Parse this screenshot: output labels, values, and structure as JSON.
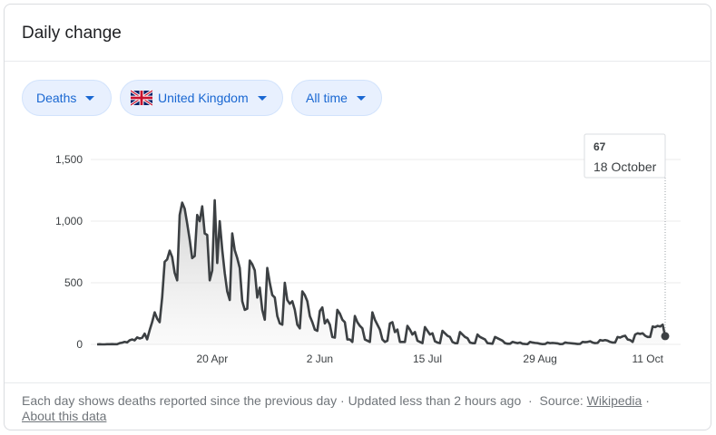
{
  "header": {
    "title": "Daily change"
  },
  "controls": {
    "metric": "Deaths",
    "region": "United Kingdom",
    "range": "All time"
  },
  "chart_data": {
    "type": "line",
    "categories": [
      null,
      null,
      null,
      null,
      null,
      null,
      null,
      null,
      null,
      null,
      null,
      null,
      null,
      null,
      null,
      null,
      null,
      null,
      null,
      null,
      null,
      null,
      null,
      null,
      null,
      null,
      null,
      null,
      null,
      null,
      null,
      null,
      null,
      null,
      null,
      null,
      null,
      null,
      null,
      null,
      null,
      null,
      null,
      null,
      null,
      null,
      "20 Apr",
      null,
      null,
      null,
      null,
      null,
      null,
      null,
      null,
      null,
      null,
      null,
      null,
      null,
      null,
      null,
      null,
      null,
      null,
      null,
      null,
      null,
      null,
      null,
      null,
      null,
      null,
      null,
      null,
      null,
      null,
      null,
      null,
      null,
      null,
      null,
      null,
      null,
      null,
      null,
      null,
      null,
      null,
      "2 Jun",
      null,
      null,
      null,
      null,
      null,
      null,
      null,
      null,
      null,
      null,
      null,
      null,
      null,
      null,
      null,
      null,
      null,
      null,
      null,
      null,
      null,
      null,
      null,
      null,
      null,
      null,
      null,
      null,
      null,
      null,
      null,
      null,
      null,
      null,
      null,
      null,
      null,
      null,
      null,
      null,
      null,
      null,
      "15 Jul",
      null,
      null,
      null,
      null,
      null,
      null,
      null,
      null,
      null,
      null,
      null,
      null,
      null,
      null,
      null,
      null,
      null,
      null,
      null,
      null,
      null,
      null,
      null,
      null,
      null,
      null,
      null,
      null,
      null,
      null,
      null,
      null,
      null,
      null,
      null,
      null,
      null,
      null,
      null,
      null,
      null,
      null,
      null,
      null,
      "29 Aug",
      null,
      null,
      null,
      null,
      null,
      null,
      null,
      null,
      null,
      null,
      null,
      null,
      null,
      null,
      null,
      null,
      null,
      null,
      null,
      null,
      null,
      null,
      null,
      null,
      null,
      null,
      null,
      null,
      null,
      null,
      null,
      null,
      null,
      null,
      null,
      null,
      null,
      null,
      null,
      null,
      null,
      null,
      "11 Oct",
      null,
      null,
      null,
      null,
      null,
      null,
      null
    ],
    "values": [
      0,
      1,
      0,
      0,
      1,
      1,
      2,
      1,
      1,
      10,
      14,
      20,
      16,
      33,
      40,
      33,
      56,
      48,
      54,
      87,
      41,
      115,
      181,
      260,
      209,
      180,
      381,
      670,
      690,
      760,
      708,
      580,
      520,
      1050,
      1150,
      1100,
      980,
      850,
      700,
      717,
      1050,
      1000,
      1120,
      900,
      888,
      520,
      600,
      1170,
      660,
      1000,
      768,
      580,
      430,
      360,
      900,
      765,
      700,
      620,
      350,
      280,
      290,
      680,
      650,
      600,
      380,
      460,
      280,
      200,
      620,
      500,
      400,
      380,
      230,
      170,
      160,
      500,
      360,
      330,
      350,
      280,
      160,
      130,
      430,
      400,
      350,
      230,
      180,
      120,
      110,
      270,
      300,
      170,
      200,
      160,
      60,
      55,
      280,
      250,
      200,
      180,
      40,
      40,
      20,
      230,
      180,
      150,
      130,
      40,
      30,
      20,
      260,
      200,
      160,
      120,
      40,
      20,
      30,
      170,
      180,
      100,
      120,
      20,
      20,
      20,
      150,
      120,
      80,
      100,
      30,
      20,
      10,
      140,
      110,
      80,
      90,
      25,
      15,
      10,
      110,
      90,
      70,
      60,
      20,
      10,
      10,
      100,
      80,
      60,
      50,
      15,
      10,
      10,
      80,
      60,
      50,
      40,
      10,
      8,
      5,
      60,
      50,
      40,
      30,
      10,
      5,
      5,
      20,
      15,
      10,
      15,
      5,
      3,
      2,
      20,
      15,
      12,
      10,
      5,
      2,
      3,
      15,
      10,
      12,
      10,
      8,
      2,
      3,
      15,
      12,
      10,
      8,
      6,
      3,
      4,
      20,
      18,
      20,
      25,
      15,
      10,
      12,
      35,
      30,
      35,
      30,
      20,
      15,
      15,
      60,
      55,
      65,
      70,
      40,
      35,
      20,
      80,
      90,
      85,
      90,
      70,
      60,
      60,
      145,
      140,
      150,
      145,
      160,
      67
    ],
    "color": "#3c4043",
    "ylim": [
      0,
      1500
    ],
    "yticks": [
      0,
      500,
      {
        "value": 1000,
        "label": "1,000"
      },
      {
        "value": 1500,
        "label": "1,500"
      }
    ],
    "grid": true
  },
  "tooltip": {
    "date": "18 October"
  },
  "footer": {
    "note": "Each day shows deaths reported since the previous day",
    "sep": "·",
    "updated": "Updated less than 2 hours ago",
    "source_label": "Source:",
    "source_link": "Wikipedia",
    "about": "About this data"
  }
}
